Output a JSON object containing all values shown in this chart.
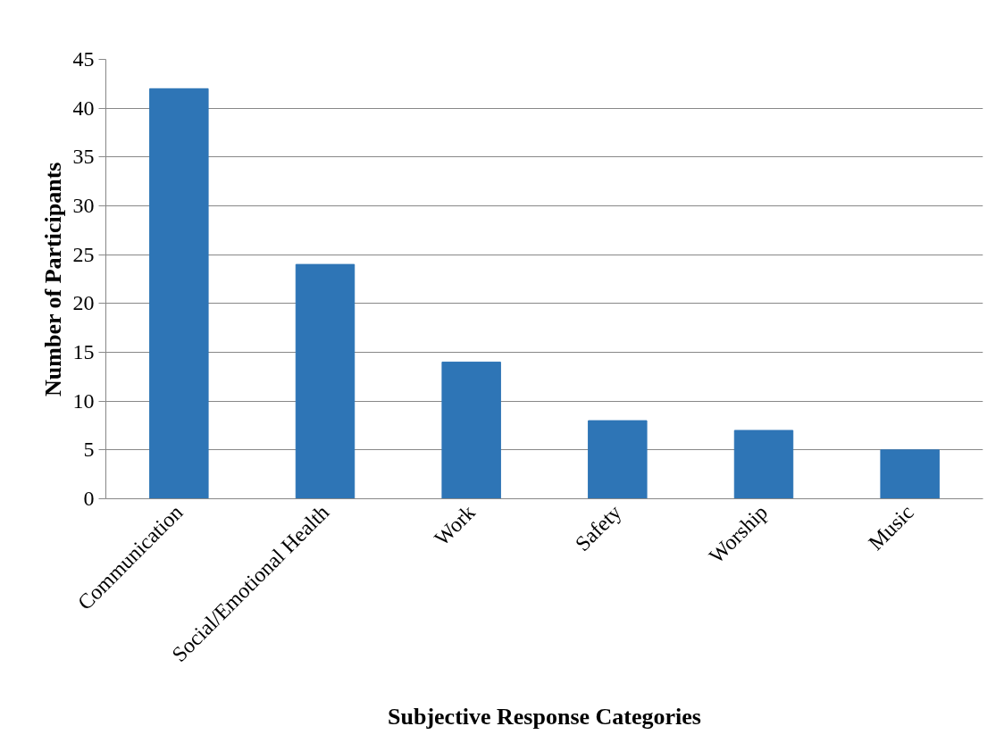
{
  "chart_data": {
    "type": "bar",
    "xlabel": "Subjective Response Categories",
    "ylabel": "Number of Participants",
    "categories": [
      "Communication",
      "Social/Emotional Health",
      "Work",
      "Safety",
      "Worship",
      "Music"
    ],
    "values": [
      42,
      24,
      14,
      8,
      7,
      5
    ],
    "color": "#2e75b6",
    "ylim": [
      0,
      45
    ],
    "yticks": [
      0,
      5,
      10,
      15,
      20,
      25,
      30,
      35,
      40,
      45
    ],
    "grid": "y"
  }
}
